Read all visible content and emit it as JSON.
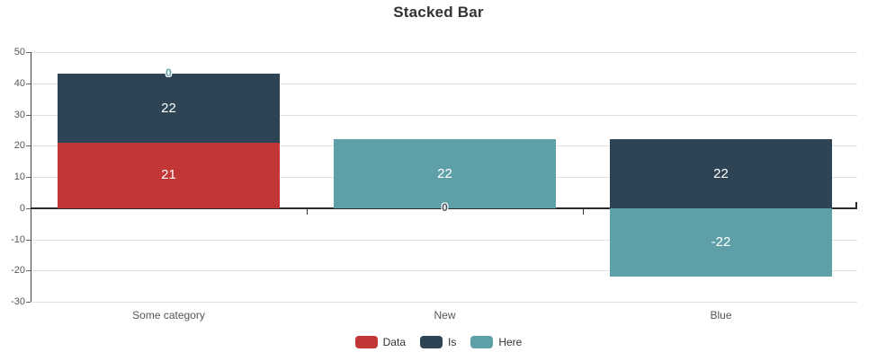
{
  "title": "Stacked Bar",
  "chart_data": {
    "type": "bar",
    "stacked": true,
    "title": "Stacked Bar",
    "categories": [
      "Some category",
      "New",
      "Blue"
    ],
    "series": [
      {
        "name": "Data",
        "color": "#c23636",
        "values": [
          21,
          0,
          0
        ]
      },
      {
        "name": "Is",
        "color": "#2e4454",
        "values": [
          22,
          0,
          22
        ]
      },
      {
        "name": "Here",
        "color": "#5fa0a8",
        "values": [
          0,
          22,
          -22
        ]
      }
    ],
    "ylim": [
      -30,
      50
    ],
    "yticks": [
      50,
      40,
      30,
      20,
      10,
      0,
      -10,
      -20,
      -30
    ],
    "grid": true,
    "legend_position": "bottom",
    "value_label_style": "white-inside",
    "visible_zero_labels": [
      {
        "category_index": 0,
        "series": "Here",
        "text": "0",
        "at_value": 43,
        "color": "#5fa0a8"
      },
      {
        "category_index": 1,
        "series": "Is",
        "text": "0",
        "at_value": 0,
        "color": "#46545e"
      }
    ]
  },
  "legend": {
    "items": [
      {
        "label": "Data",
        "color": "#c23636"
      },
      {
        "label": "Is",
        "color": "#2e4454"
      },
      {
        "label": "Here",
        "color": "#5fa0a8"
      }
    ]
  }
}
